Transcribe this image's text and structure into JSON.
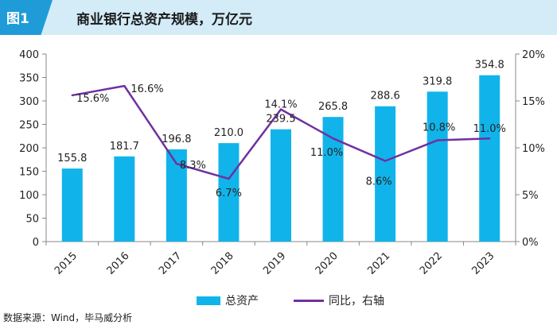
{
  "header": {
    "figure_label": "图1",
    "title": "商业银行总资产规模，万亿元"
  },
  "colors": {
    "bar": "#11b4ea",
    "line": "#7030a0",
    "header_bg": "#d3ecf8",
    "label_bg": "#1f9cd8"
  },
  "chart_data": {
    "type": "bar+line",
    "title": "商业银行总资产规模，万亿元",
    "categories": [
      "2015",
      "2016",
      "2017",
      "2018",
      "2019",
      "2020",
      "2021",
      "2022",
      "2023"
    ],
    "series": [
      {
        "name": "总资产",
        "type": "bar",
        "axis": "left",
        "values": [
          155.8,
          181.7,
          196.8,
          210.0,
          239.5,
          265.8,
          288.6,
          319.8,
          354.8
        ],
        "labels": [
          "155.8",
          "181.7",
          "196.8",
          "210.0",
          "239.5",
          "265.8",
          "288.6",
          "319.8",
          "354.8"
        ]
      },
      {
        "name": "同比，右轴",
        "type": "line",
        "axis": "right",
        "values": [
          15.6,
          16.6,
          8.3,
          6.7,
          14.1,
          11.0,
          8.6,
          10.8,
          11.0
        ],
        "labels": [
          "15.6%",
          "16.6%",
          "8.3%",
          "6.7%",
          "14.1%",
          "11.0%",
          "8.6%",
          "10.8%",
          "11.0%"
        ]
      }
    ],
    "left_axis": {
      "min": 0,
      "max": 400,
      "ticks": [
        "0",
        "50",
        "100",
        "150",
        "200",
        "250",
        "300",
        "350",
        "400"
      ]
    },
    "right_axis": {
      "min": 0,
      "max": 20,
      "ticks": [
        "0%",
        "5%",
        "10%",
        "15%",
        "20%"
      ]
    }
  },
  "legend": {
    "bar_label": "总资产",
    "line_label": "同比，右轴"
  },
  "source": "数据来源：Wind，毕马威分析"
}
